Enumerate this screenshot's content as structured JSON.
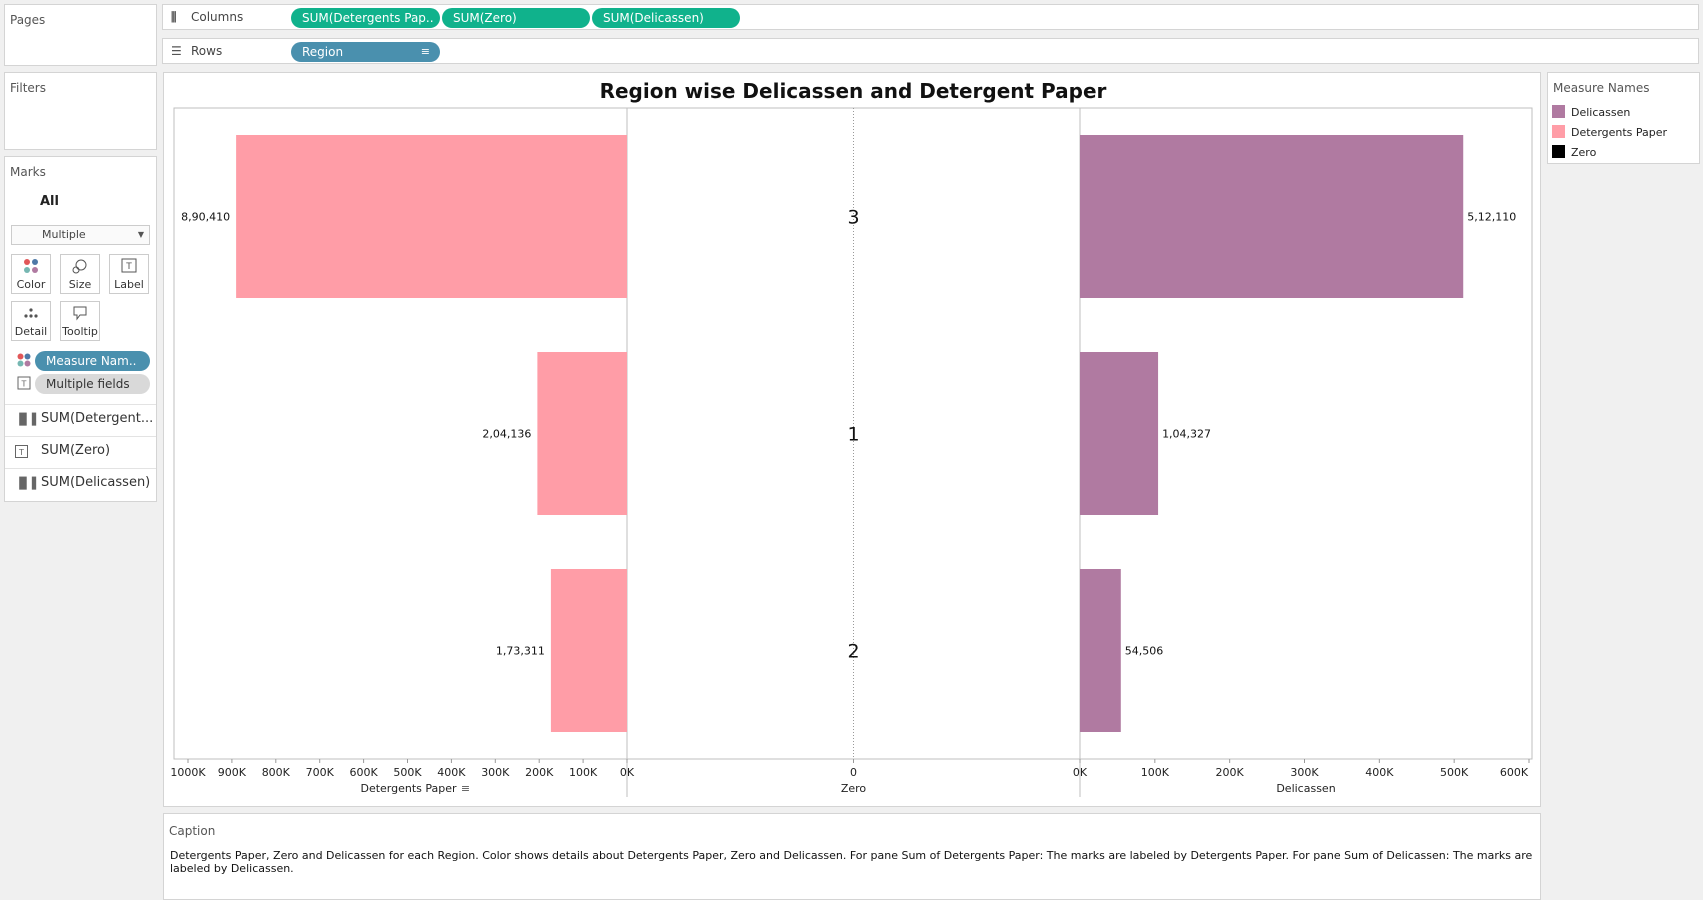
{
  "left_panel": {
    "pages_title": "Pages",
    "filters_title": "Filters",
    "marks_title": "Marks",
    "marks_all_label": "All",
    "mark_type": "Multiple",
    "buttons": {
      "color": "Color",
      "size": "Size",
      "label": "Label",
      "detail": "Detail",
      "tooltip": "Tooltip"
    },
    "color_pill": "Measure Nam..",
    "label_pill": "Multiple fields",
    "fields": [
      "SUM(Detergent...",
      "SUM(Zero)",
      "SUM(Delicassen)"
    ]
  },
  "shelves": {
    "columns_label": "Columns",
    "rows_label": "Rows",
    "column_pills": [
      "SUM(Detergents Pap..",
      "SUM(Zero)",
      "SUM(Delicassen)"
    ],
    "row_pill": "Region"
  },
  "legend": {
    "title": "Measure Names",
    "items": [
      {
        "label": "Delicassen",
        "color": "#b07aa1"
      },
      {
        "label": "Detergents Paper",
        "color": "#ff9da7"
      },
      {
        "label": "Zero",
        "color": "#000000"
      }
    ]
  },
  "caption": {
    "title": "Caption",
    "text": "Detergents Paper, Zero and Delicassen for each Region.  Color shows details about Detergents Paper, Zero and Delicassen.  For pane Sum of Detergents Paper:  The marks are labeled by Detergents Paper.  For pane Sum of Delicassen:  The marks are labeled by Delicassen."
  },
  "chart_data": {
    "type": "bar",
    "title": "Region wise Delicassen and Detergent Paper",
    "categories": [
      "3",
      "1",
      "2"
    ],
    "series": [
      {
        "name": "Detergents Paper",
        "values": [
          890410,
          204136,
          173311
        ],
        "labels": [
          "8,90,410",
          "2,04,136",
          "1,73,311"
        ],
        "color": "#ff9da7",
        "axis_reversed": true
      },
      {
        "name": "Zero",
        "values": [
          0,
          0,
          0
        ]
      },
      {
        "name": "Delicassen",
        "values": [
          512110,
          104327,
          54506
        ],
        "labels": [
          "5,12,110",
          "1,04,327",
          "54,506"
        ],
        "color": "#b07aa1"
      }
    ],
    "axes": {
      "detergents": {
        "label": "Detergents Paper",
        "ticks": [
          "1000K",
          "900K",
          "800K",
          "700K",
          "600K",
          "500K",
          "400K",
          "300K",
          "200K",
          "100K",
          "0K"
        ],
        "range": [
          0,
          1000000
        ]
      },
      "zero": {
        "label": "Zero",
        "ticks": [
          "0"
        ]
      },
      "delicassen": {
        "label": "Delicassen",
        "ticks": [
          "0K",
          "100K",
          "200K",
          "300K",
          "400K",
          "500K",
          "600K"
        ],
        "range": [
          0,
          600000
        ]
      }
    }
  }
}
